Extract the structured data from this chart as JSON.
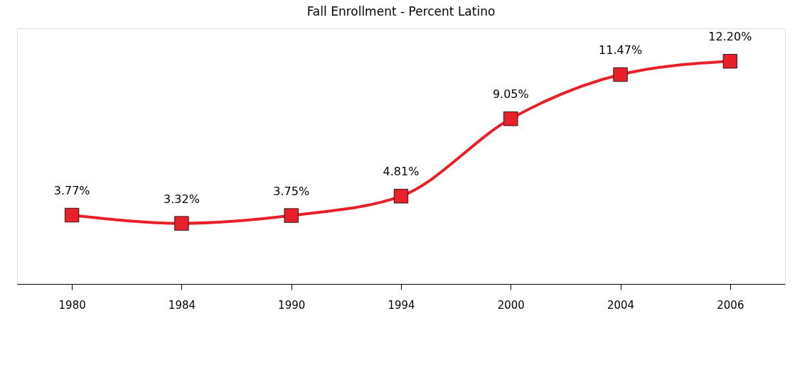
{
  "chart_data": {
    "type": "line",
    "title": "Fall Enrollment - Percent Latino",
    "categories": [
      "1980",
      "1984",
      "1990",
      "1994",
      "2000",
      "2004",
      "2006"
    ],
    "series": [
      {
        "color": "#e8202a",
        "values": [
          3.77,
          3.32,
          3.75,
          4.81,
          9.05,
          11.47,
          12.2
        ],
        "value_labels": [
          "3.77%",
          "3.32%",
          "3.75%",
          "4.81%",
          "9.05%",
          "11.47%",
          "12.20%"
        ]
      }
    ],
    "ylim": [
      0,
      14
    ],
    "marker": "square",
    "line_style": "solid"
  }
}
